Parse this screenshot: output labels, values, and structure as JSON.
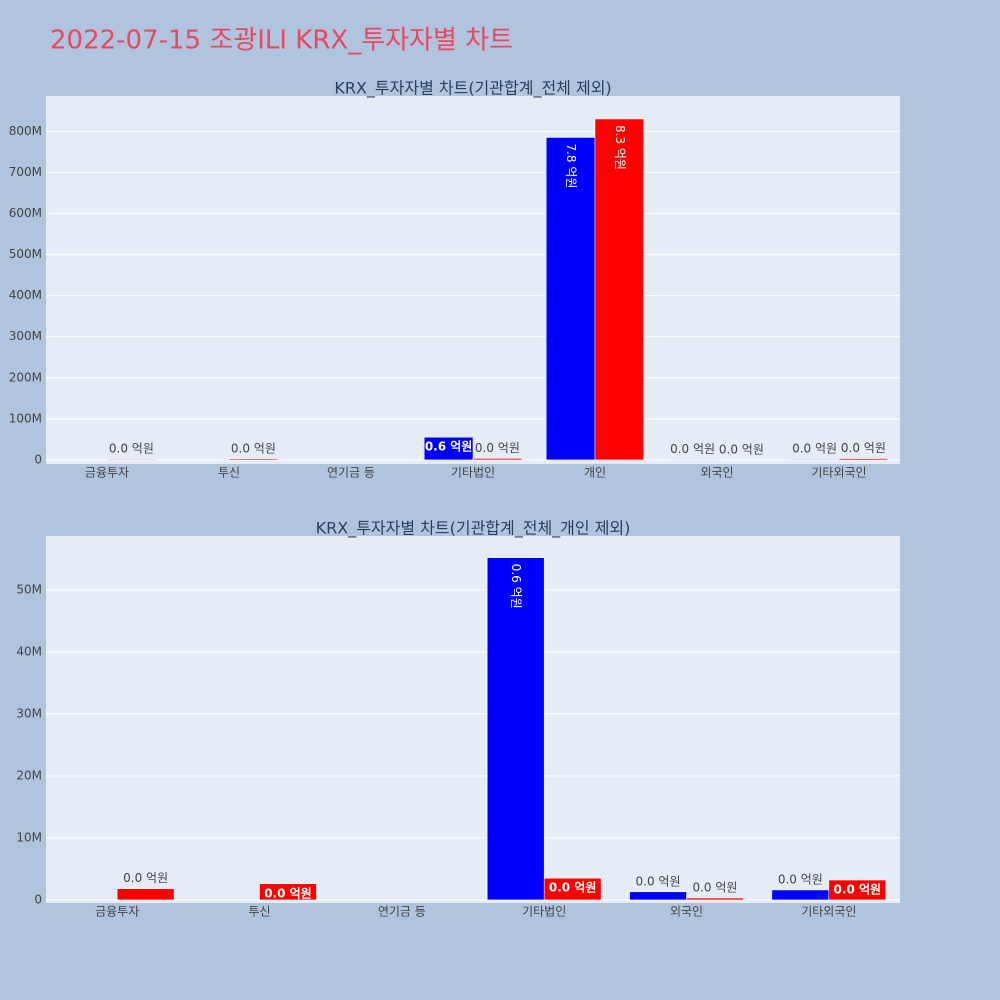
{
  "title": "2022-07-15 조광ILI KRX_투자자별 차트",
  "chart_data": [
    {
      "type": "bar",
      "title": "KRX_투자자별 차트(기관합계_전체 제외)",
      "categories": [
        "금융투자",
        "투신",
        "연기금 등",
        "기타법인",
        "개인",
        "외국인",
        "기타외국인"
      ],
      "series": [
        {
          "color": "#0000ff",
          "values": [
            null,
            null,
            null,
            55200000,
            785000000,
            1300000,
            1600000
          ],
          "value_labels": [
            null,
            null,
            null,
            "0.6 억원",
            "7.8 억원",
            "0.0 억원",
            "0.0 억원"
          ]
        },
        {
          "color": "#ff0000",
          "values": [
            1800000,
            2600000,
            null,
            3500000,
            830000000,
            300000,
            3200000
          ],
          "value_labels": [
            "0.0 억원",
            "0.0 억원",
            null,
            "0.0 억원",
            "8.3 억원",
            "0.0 억원",
            "0.0 억원"
          ]
        }
      ],
      "ylim": [
        -10000000,
        886000000
      ],
      "yticks": [
        0,
        {
          "value": 100000000,
          "label": "100M"
        },
        {
          "value": 200000000,
          "label": "200M"
        },
        {
          "value": 300000000,
          "label": "300M"
        },
        {
          "value": 400000000,
          "label": "400M"
        },
        {
          "value": 500000000,
          "label": "500M"
        },
        {
          "value": 600000000,
          "label": "600M"
        },
        {
          "value": 700000000,
          "label": "700M"
        },
        {
          "value": 800000000,
          "label": "800M"
        }
      ],
      "grid": true
    },
    {
      "type": "bar",
      "title": "KRX_투자자별 차트(기관합계_전체_개인 제외)",
      "categories": [
        "금융투자",
        "투신",
        "연기금 등",
        "기타법인",
        "외국인",
        "기타외국인"
      ],
      "series": [
        {
          "color": "#0000ff",
          "values": [
            null,
            null,
            null,
            55200000,
            1300000,
            1600000
          ],
          "value_labels": [
            null,
            null,
            null,
            "0.6 억원",
            "0.0 억원",
            "0.0 억원"
          ]
        },
        {
          "color": "#ff0000",
          "values": [
            1800000,
            2600000,
            null,
            3500000,
            300000,
            3200000
          ],
          "value_labels": [
            "0.0 억원",
            "0.0 억원",
            null,
            "0.0 억원",
            "0.0 억원",
            "0.0 억원"
          ]
        }
      ],
      "ylim": [
        -500000,
        58700000
      ],
      "yticks": [
        0,
        {
          "value": 10000000,
          "label": "10M"
        },
        {
          "value": 20000000,
          "label": "20M"
        },
        {
          "value": 30000000,
          "label": "30M"
        },
        {
          "value": 40000000,
          "label": "40M"
        },
        {
          "value": 50000000,
          "label": "50M"
        }
      ],
      "grid": true
    }
  ]
}
